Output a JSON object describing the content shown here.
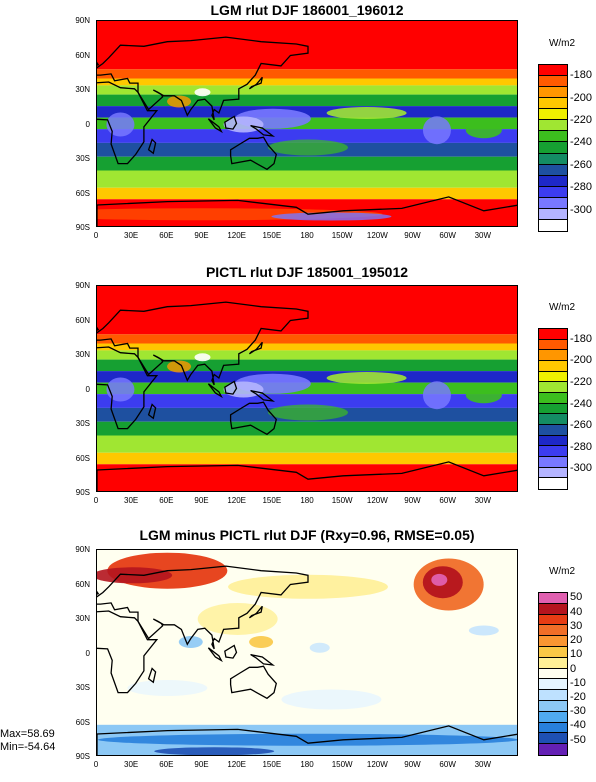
{
  "panels": [
    {
      "title": "LGM rlut DJF 186001_196012",
      "unit": "W/m2",
      "colorbar_labels": [
        "-180",
        "-200",
        "-220",
        "-240",
        "-260",
        "-280",
        "-300"
      ],
      "colors": [
        "#ff0000",
        "#ff5a00",
        "#ff9600",
        "#ffc800",
        "#f0f000",
        "#a0e632",
        "#3cbe1e",
        "#16a032",
        "#148c64",
        "#1e50a0",
        "#1e28c8",
        "#3c3cf0",
        "#7878ff",
        "#b4b4ff",
        "#ffffff"
      ]
    },
    {
      "title": "PICTL rlut DJF 185001_195012",
      "unit": "W/m2",
      "colorbar_labels": [
        "-180",
        "-200",
        "-220",
        "-240",
        "-260",
        "-280",
        "-300"
      ],
      "colors": [
        "#ff0000",
        "#ff5a00",
        "#ff9600",
        "#ffc800",
        "#f0f000",
        "#a0e632",
        "#3cbe1e",
        "#16a032",
        "#148c64",
        "#1e50a0",
        "#1e28c8",
        "#3c3cf0",
        "#7878ff",
        "#b4b4ff",
        "#ffffff"
      ]
    },
    {
      "title": "LGM minus PICTL rlut DJF (Rxy=0.96, RMSE=0.05)",
      "unit": "W/m2",
      "colorbar_labels": [
        "50",
        "40",
        "30",
        "20",
        "10",
        "0",
        "-10",
        "-20",
        "-30",
        "-40",
        "-50"
      ],
      "colors": [
        "#e060b0",
        "#b4141e",
        "#e63c14",
        "#f06e28",
        "#fa9632",
        "#fac846",
        "#fff096",
        "#fffff0",
        "#e6f5ff",
        "#bee1ff",
        "#8cc8f5",
        "#50aaf0",
        "#2880dc",
        "#1e50b4",
        "#6420b4"
      ]
    }
  ],
  "lat_ticks": [
    "90N",
    "60N",
    "30N",
    "0",
    "30S",
    "60S",
    "90S"
  ],
  "lon_ticks": [
    "0",
    "30E",
    "60E",
    "90E",
    "120E",
    "150E",
    "180",
    "150W",
    "120W",
    "90W",
    "60W",
    "30W"
  ],
  "stats": {
    "max": "Max=58.69",
    "min": "Min=-54.64"
  }
}
